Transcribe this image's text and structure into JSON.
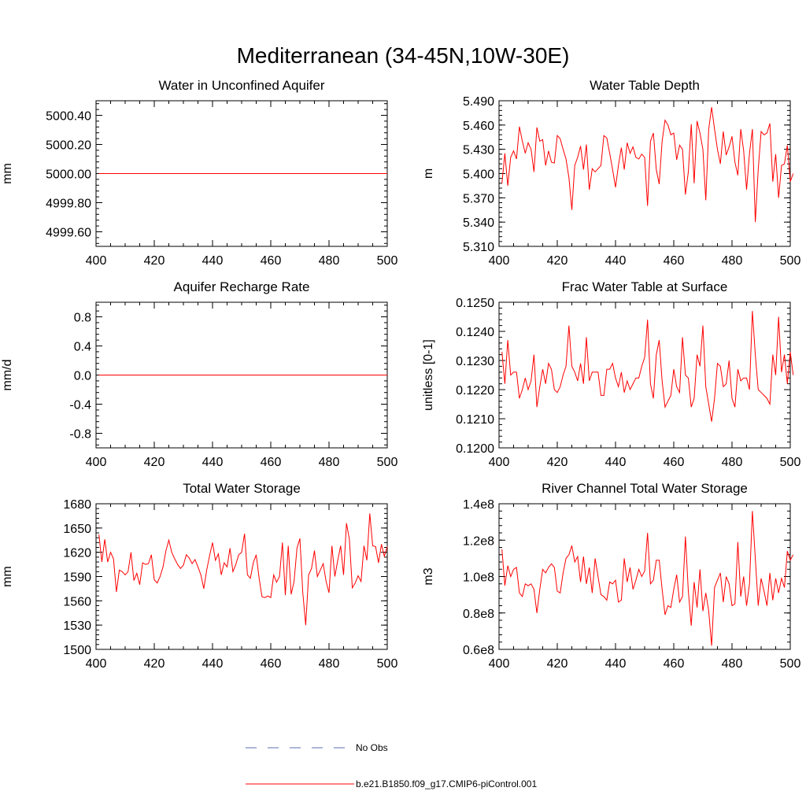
{
  "figure": {
    "title": "Mediterranean (34-45N,10W-30E)",
    "series_color": "#ff0000",
    "obs_color": "#5a6fb0"
  },
  "legend": {
    "entries": [
      {
        "label": "No Obs",
        "style": "dashed",
        "color": "#5a6fb0"
      },
      {
        "label": "b.e21.B1850.f09_g17.CMIP6-piControl.001",
        "style": "solid",
        "color": "#ff0000"
      }
    ]
  },
  "chart_data": [
    {
      "type": "line",
      "title": "Water in Unconfined Aquifer",
      "xlabel": "",
      "ylabel": "mm",
      "xlim": [
        400,
        500
      ],
      "ylim": [
        4999.5,
        5000.5
      ],
      "xticks": [
        400,
        420,
        440,
        460,
        480,
        500
      ],
      "yticks": [
        4999.6,
        4999.8,
        5000.0,
        5000.2,
        5000.4
      ],
      "ytick_labels": [
        "4999.60",
        "4999.80",
        "5000.00",
        "5000.20",
        "5000.40"
      ],
      "x_start": 401,
      "x_step": 1,
      "series": [
        {
          "name": "b.e21.B1850.f09_g17.CMIP6-piControl.001",
          "values": [
            5000.0,
            5000.0
          ]
        }
      ],
      "x": [
        401,
        500
      ]
    },
    {
      "type": "line",
      "title": "Water Table Depth",
      "xlabel": "",
      "ylabel": "m",
      "xlim": [
        400,
        500
      ],
      "ylim": [
        5.31,
        5.49
      ],
      "xticks": [
        400,
        420,
        440,
        460,
        480,
        500
      ],
      "yticks": [
        5.31,
        5.34,
        5.37,
        5.4,
        5.43,
        5.46,
        5.49
      ],
      "ytick_labels": [
        "5.310",
        "5.340",
        "5.370",
        "5.400",
        "5.430",
        "5.460",
        "5.490"
      ],
      "x_start": 401,
      "x_step": 1,
      "series": [
        {
          "name": "b.e21.B1850.f09_g17.CMIP6-piControl.001",
          "values": [
            5.388,
            5.425,
            5.385,
            5.42,
            5.428,
            5.418,
            5.458,
            5.44,
            5.425,
            5.438,
            5.43,
            5.402,
            5.457,
            5.44,
            5.442,
            5.41,
            5.428,
            5.414,
            5.413,
            5.447,
            5.443,
            5.43,
            5.418,
            5.395,
            5.355,
            5.41,
            5.42,
            5.434,
            5.405,
            5.436,
            5.38,
            5.406,
            5.402,
            5.406,
            5.41,
            5.447,
            5.444,
            5.425,
            5.405,
            5.383,
            5.41,
            5.432,
            5.405,
            5.438,
            5.425,
            5.433,
            5.42,
            5.418,
            5.424,
            5.42,
            5.36,
            5.44,
            5.45,
            5.405,
            5.387,
            5.44,
            5.466,
            5.46,
            5.448,
            5.45,
            5.417,
            5.435,
            5.43,
            5.374,
            5.402,
            5.461,
            5.388,
            5.465,
            5.45,
            5.43,
            5.367,
            5.455,
            5.482,
            5.455,
            5.43,
            5.412,
            5.452,
            5.423,
            5.433,
            5.446,
            5.414,
            5.398,
            5.455,
            5.428,
            5.38,
            5.425,
            5.455,
            5.34,
            5.405,
            5.452,
            5.448,
            5.45,
            5.462,
            5.39,
            5.424,
            5.37,
            5.41,
            5.412,
            5.435,
            5.39,
            5.4
          ]
        }
      ]
    },
    {
      "type": "line",
      "title": "Aquifer Recharge Rate",
      "xlabel": "",
      "ylabel": "mm/d",
      "xlim": [
        400,
        500
      ],
      "ylim": [
        -1.0,
        1.0
      ],
      "xticks": [
        400,
        420,
        440,
        460,
        480,
        500
      ],
      "yticks": [
        -0.8,
        -0.4,
        0.0,
        0.4,
        0.8
      ],
      "ytick_labels": [
        "-0.8",
        "-0.4",
        "0.0",
        "0.4",
        "0.8"
      ],
      "series": [
        {
          "name": "b.e21.B1850.f09_g17.CMIP6-piControl.001",
          "values": [
            0.0,
            0.0
          ]
        }
      ],
      "x": [
        401,
        500
      ]
    },
    {
      "type": "line",
      "title": "Frac Water Table at Surface",
      "xlabel": "",
      "ylabel": "unitless [0-1]",
      "xlim": [
        400,
        500
      ],
      "ylim": [
        0.12,
        0.125
      ],
      "xticks": [
        400,
        420,
        440,
        460,
        480,
        500
      ],
      "yticks": [
        0.12,
        0.121,
        0.122,
        0.123,
        0.124,
        0.125
      ],
      "ytick_labels": [
        "0.1200",
        "0.1210",
        "0.1220",
        "0.1230",
        "0.1240",
        "0.1250"
      ],
      "x_start": 401,
      "x_step": 1,
      "series": [
        {
          "name": "b.e21.B1850.f09_g17.CMIP6-piControl.001",
          "values": [
            0.1233,
            0.1222,
            0.1237,
            0.1225,
            0.1226,
            0.1226,
            0.1217,
            0.122,
            0.1224,
            0.122,
            0.1223,
            0.1232,
            0.1214,
            0.1221,
            0.1227,
            0.1222,
            0.1229,
            0.1227,
            0.122,
            0.1219,
            0.1221,
            0.1225,
            0.1228,
            0.1242,
            0.1228,
            0.1226,
            0.1223,
            0.1229,
            0.1222,
            0.1238,
            0.1223,
            0.1226,
            0.1226,
            0.1226,
            0.1218,
            0.1218,
            0.1227,
            0.1227,
            0.1229,
            0.1224,
            0.1221,
            0.1226,
            0.1219,
            0.1223,
            0.122,
            0.1222,
            0.1224,
            0.1224,
            0.1228,
            0.1231,
            0.1244,
            0.1222,
            0.1217,
            0.1232,
            0.1237,
            0.1223,
            0.1214,
            0.1216,
            0.1218,
            0.1227,
            0.1221,
            0.1219,
            0.1238,
            0.1225,
            0.1224,
            0.1214,
            0.1217,
            0.1232,
            0.1228,
            0.1242,
            0.1221,
            0.1215,
            0.1209,
            0.1217,
            0.1229,
            0.1228,
            0.1221,
            0.1222,
            0.123,
            0.1217,
            0.1214,
            0.1227,
            0.1223,
            0.1224,
            0.1224,
            0.122,
            0.1247,
            0.1232,
            0.122,
            0.1219,
            0.1218,
            0.1217,
            0.1215,
            0.1232,
            0.1225,
            0.1245,
            0.1226,
            0.1232,
            0.1222,
            0.1233,
            0.1225
          ]
        }
      ]
    },
    {
      "type": "line",
      "title": "Total Water Storage",
      "xlabel": "",
      "ylabel": "mm",
      "xlim": [
        400,
        500
      ],
      "ylim": [
        1500,
        1680
      ],
      "xticks": [
        400,
        420,
        440,
        460,
        480,
        500
      ],
      "yticks": [
        1500,
        1530,
        1560,
        1590,
        1620,
        1650,
        1680
      ],
      "ytick_labels": [
        "1500",
        "1530",
        "1560",
        "1590",
        "1620",
        "1650",
        "1680"
      ],
      "x_start": 401,
      "x_step": 1,
      "series": [
        {
          "name": "b.e21.B1850.f09_g17.CMIP6-piControl.001",
          "values": [
            1642,
            1608,
            1636,
            1608,
            1620,
            1612,
            1571,
            1598,
            1596,
            1592,
            1596,
            1620,
            1585,
            1594,
            1580,
            1607,
            1605,
            1606,
            1617,
            1586,
            1582,
            1590,
            1602,
            1622,
            1635,
            1620,
            1612,
            1605,
            1600,
            1604,
            1617,
            1613,
            1606,
            1611,
            1602,
            1592,
            1575,
            1598,
            1616,
            1632,
            1610,
            1618,
            1592,
            1607,
            1602,
            1625,
            1596,
            1605,
            1617,
            1620,
            1643,
            1592,
            1588,
            1607,
            1617,
            1588,
            1565,
            1564,
            1566,
            1564,
            1592,
            1583,
            1590,
            1632,
            1567,
            1628,
            1568,
            1584,
            1625,
            1637,
            1570,
            1530,
            1592,
            1600,
            1622,
            1590,
            1598,
            1606,
            1584,
            1570,
            1628,
            1590,
            1610,
            1628,
            1592,
            1656,
            1636,
            1576,
            1582,
            1591,
            1584,
            1628,
            1610,
            1668,
            1628,
            1627,
            1607,
            1630,
            1615,
            1627
          ]
        }
      ]
    },
    {
      "type": "line",
      "title": "River Channel Total Water Storage",
      "xlabel": "",
      "ylabel": "m3",
      "xlim": [
        400,
        500
      ],
      "ylim": [
        60000000.0,
        140000000.0
      ],
      "xticks": [
        400,
        420,
        440,
        460,
        480,
        500
      ],
      "yticks": [
        60000000.0,
        80000000.0,
        100000000.0,
        120000000.0,
        140000000.0
      ],
      "ytick_labels": [
        "0.6e8",
        "0.8e8",
        "1.0e8",
        "1.2e8",
        "1.4e8"
      ],
      "x_start": 401,
      "x_step": 1,
      "series": [
        {
          "name": "b.e21.B1850.f09_g17.CMIP6-piControl.001",
          "values": [
            115000000.0,
            95000000.0,
            106000000.0,
            100000000.0,
            104000000.0,
            105000000.0,
            91000000.0,
            89000000.0,
            96000000.0,
            95000000.0,
            96000000.0,
            93000000.0,
            80000000.0,
            93000000.0,
            104000000.0,
            102000000.0,
            105000000.0,
            107000000.0,
            105000000.0,
            92000000.0,
            91000000.0,
            102000000.0,
            110000000.0,
            112000000.0,
            117000000.0,
            108000000.0,
            111000000.0,
            97000000.0,
            111000000.0,
            96000000.0,
            105000000.0,
            91000000.0,
            110000000.0,
            100000000.0,
            90000000.0,
            89000000.0,
            87000000.0,
            97000000.0,
            96000000.0,
            98000000.0,
            86000000.0,
            87000000.0,
            110000000.0,
            97000000.0,
            105000000.0,
            93000000.0,
            98000000.0,
            104000000.0,
            100000000.0,
            103000000.0,
            124000000.0,
            96000000.0,
            98000000.0,
            109000000.0,
            109000000.0,
            93000000.0,
            79000000.0,
            84000000.0,
            83000000.0,
            93000000.0,
            101000000.0,
            86000000.0,
            89000000.0,
            122000000.0,
            92000000.0,
            73000000.0,
            97000000.0,
            83000000.0,
            104000000.0,
            81000000.0,
            91000000.0,
            81000000.0,
            62000000.0,
            94000000.0,
            98000000.0,
            102000000.0,
            86000000.0,
            100000000.0,
            96000000.0,
            84000000.0,
            85000000.0,
            119000000.0,
            89000000.0,
            100000000.0,
            84000000.0,
            96000000.0,
            136000000.0,
            110000000.0,
            84000000.0,
            99000000.0,
            92000000.0,
            84000000.0,
            102000000.0,
            87000000.0,
            99000000.0,
            91000000.0,
            99000000.0,
            94000000.0,
            114000000.0,
            109000000.0,
            112000000.0
          ]
        }
      ]
    }
  ]
}
